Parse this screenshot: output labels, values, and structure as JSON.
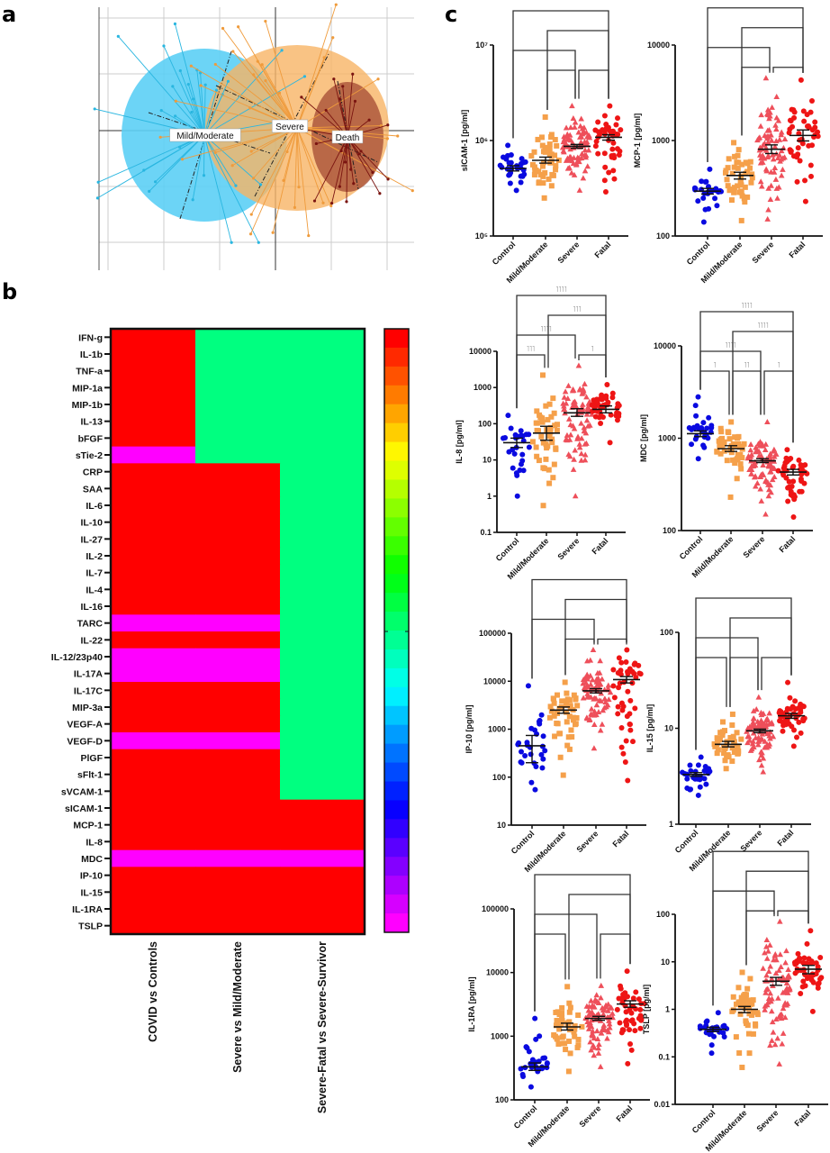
{
  "panel_labels": {
    "a": "a",
    "b": "b",
    "c": "c"
  },
  "chart_data": [
    {
      "panel": "a",
      "type": "scatter",
      "groups": [
        {
          "name": "Mild/Moderate",
          "color": "#29b6e0",
          "fill": "#5ccff5"
        },
        {
          "name": "Severe",
          "color": "#ef9b3c",
          "fill": "#f7b465"
        },
        {
          "name": "Death",
          "color": "#7a1410",
          "fill": "#a34a33"
        }
      ],
      "grid": true
    },
    {
      "panel": "b",
      "type": "heatmap",
      "columns": [
        "COVID vs Controls",
        "Severe vs Mild/Moderate",
        "Severe-Fatal vs Severe-Survivor"
      ],
      "color_key": {
        "1": "#ff0000",
        "0": "#00ff80",
        "-1": "#ff00ff"
      },
      "rows": [
        {
          "name": "IFN-g",
          "values": [
            1,
            0,
            0
          ]
        },
        {
          "name": "IL-1b",
          "values": [
            1,
            0,
            0
          ]
        },
        {
          "name": "TNF-a",
          "values": [
            1,
            0,
            0
          ]
        },
        {
          "name": "MIP-1a",
          "values": [
            1,
            0,
            0
          ]
        },
        {
          "name": "MIP-1b",
          "values": [
            1,
            0,
            0
          ]
        },
        {
          "name": "IL-13",
          "values": [
            1,
            0,
            0
          ]
        },
        {
          "name": "bFGF",
          "values": [
            1,
            0,
            0
          ]
        },
        {
          "name": "sTie-2",
          "values": [
            -1,
            0,
            0
          ]
        },
        {
          "name": "CRP",
          "values": [
            1,
            1,
            0
          ]
        },
        {
          "name": "SAA",
          "values": [
            1,
            1,
            0
          ]
        },
        {
          "name": "IL-6",
          "values": [
            1,
            1,
            0
          ]
        },
        {
          "name": "IL-10",
          "values": [
            1,
            1,
            0
          ]
        },
        {
          "name": "IL-27",
          "values": [
            1,
            1,
            0
          ]
        },
        {
          "name": "IL-2",
          "values": [
            1,
            1,
            0
          ]
        },
        {
          "name": "IL-7",
          "values": [
            1,
            1,
            0
          ]
        },
        {
          "name": "IL-4",
          "values": [
            1,
            1,
            0
          ]
        },
        {
          "name": "IL-16",
          "values": [
            1,
            1,
            0
          ]
        },
        {
          "name": "TARC",
          "values": [
            -1,
            -1,
            0
          ]
        },
        {
          "name": "IL-22",
          "values": [
            1,
            1,
            0
          ]
        },
        {
          "name": "IL-12/23p40",
          "values": [
            -1,
            -1,
            0
          ]
        },
        {
          "name": "IL-17A",
          "values": [
            -1,
            -1,
            0
          ]
        },
        {
          "name": "IL-17C",
          "values": [
            1,
            1,
            0
          ]
        },
        {
          "name": "MIP-3a",
          "values": [
            1,
            1,
            0
          ]
        },
        {
          "name": "VEGF-A",
          "values": [
            1,
            1,
            0
          ]
        },
        {
          "name": "VEGF-D",
          "values": [
            -1,
            -1,
            0
          ]
        },
        {
          "name": "PlGF",
          "values": [
            1,
            1,
            0
          ]
        },
        {
          "name": "sFlt-1",
          "values": [
            1,
            1,
            0
          ]
        },
        {
          "name": "sVCAM-1",
          "values": [
            1,
            1,
            0
          ]
        },
        {
          "name": "sICAM-1",
          "values": [
            1,
            1,
            1
          ]
        },
        {
          "name": "MCP-1",
          "values": [
            1,
            1,
            1
          ]
        },
        {
          "name": "IL-8",
          "values": [
            1,
            1,
            1
          ]
        },
        {
          "name": "MDC",
          "values": [
            -1,
            -1,
            -1
          ]
        },
        {
          "name": "IP-10",
          "values": [
            1,
            1,
            1
          ]
        },
        {
          "name": "IL-15",
          "values": [
            1,
            1,
            1
          ]
        },
        {
          "name": "IL-1RA",
          "values": [
            1,
            1,
            1
          ]
        },
        {
          "name": "TSLP",
          "values": [
            1,
            1,
            1
          ]
        }
      ]
    },
    {
      "panel": "c",
      "type": "scatter",
      "categories": [
        "Control",
        "Mild/Moderate",
        "Severe",
        "Fatal"
      ],
      "group_colors": [
        "#0a0ae0",
        "#f5a04a",
        "#ee4f5a",
        "#ee1515"
      ],
      "group_markers": [
        "circle",
        "square",
        "triangle",
        "circle"
      ],
      "y_scale": "log",
      "plots": [
        {
          "ylabel": "sICAM-1 [pg/ml]",
          "ylim": [
            100000,
            10000000
          ],
          "ticks": [
            "10⁵",
            "10⁶",
            "10⁷"
          ],
          "groups": [
            {
              "mean": 510000,
              "sem": [
                480000,
                545000
              ],
              "min": 300000,
              "max": 890000
            },
            {
              "mean": 620000,
              "sem": [
                580000,
                670000
              ],
              "min": 250000,
              "max": 1760000
            },
            {
              "mean": 870000,
              "sem": [
                830000,
                910000
              ],
              "min": 300000,
              "max": 2300000
            },
            {
              "mean": 1080000,
              "sem": [
                1010000,
                1150000
              ],
              "min": 290000,
              "max": 2300000
            }
          ],
          "brackets": [
            {
              "pair": [
                0,
                3
              ],
              "stars": ""
            },
            {
              "pair": [
                1,
                3
              ],
              "stars": ""
            },
            {
              "pair": [
                0,
                2
              ],
              "stars": ""
            },
            {
              "pair": [
                1,
                2
              ],
              "stars": ""
            },
            {
              "pair": [
                2,
                3
              ],
              "stars": ""
            }
          ]
        },
        {
          "ylabel": "MCP-1 [pg/ml]",
          "ylim": [
            100,
            10000
          ],
          "ticks": [
            "100",
            "1000",
            "10000"
          ],
          "groups": [
            {
              "mean": 295,
              "sem": [
                275,
                315
              ],
              "min": 140,
              "max": 500
            },
            {
              "mean": 430,
              "sem": [
                395,
                465
              ],
              "min": 145,
              "max": 950
            },
            {
              "mean": 810,
              "sem": [
                730,
                900
              ],
              "min": 150,
              "max": 4500
            },
            {
              "mean": 1130,
              "sem": [
                990,
                1290
              ],
              "min": 230,
              "max": 4300
            }
          ],
          "brackets": [
            {
              "pair": [
                0,
                3
              ],
              "stars": ""
            },
            {
              "pair": [
                1,
                3
              ],
              "stars": ""
            },
            {
              "pair": [
                0,
                2
              ],
              "stars": ""
            },
            {
              "pair": [
                1,
                2
              ],
              "stars": ""
            },
            {
              "pair": [
                2,
                3
              ],
              "stars": ""
            }
          ]
        },
        {
          "ylabel": "IL-8 [pg/ml]",
          "ylim": [
            0.1,
            10000
          ],
          "ticks": [
            "0.1",
            "1",
            "10",
            "100",
            "1000",
            "10000"
          ],
          "groups": [
            {
              "mean": 30,
              "sem": [
                22,
                40
              ],
              "min": 1,
              "max": 170
            },
            {
              "mean": 55,
              "sem": [
                35,
                85
              ],
              "min": 0.55,
              "max": 2200
            },
            {
              "mean": 200,
              "sem": [
                160,
                260
              ],
              "min": 1,
              "max": 4000
            },
            {
              "mean": 250,
              "sem": [
                200,
                310
              ],
              "min": 30,
              "max": 1200
            }
          ],
          "brackets": [
            {
              "pair": [
                0,
                3
              ],
              "stars": "˥˥˥˥"
            },
            {
              "pair": [
                1,
                3
              ],
              "stars": "˥˥˥"
            },
            {
              "pair": [
                0,
                2
              ],
              "stars": "˥˥˥˥"
            },
            {
              "pair": [
                0,
                1
              ],
              "stars": "˥˥˥"
            },
            {
              "pair": [
                2,
                3
              ],
              "stars": "˥"
            }
          ]
        },
        {
          "ylabel": "MDC [pg/ml]",
          "ylim": [
            100,
            10000
          ],
          "ticks": [
            "100",
            "1000",
            "10000"
          ],
          "groups": [
            {
              "mean": 1120,
              "sem": [
                1040,
                1200
              ],
              "min": 600,
              "max": 2800
            },
            {
              "mean": 770,
              "sem": [
                720,
                830
              ],
              "min": 230,
              "max": 1500
            },
            {
              "mean": 570,
              "sem": [
                545,
                600
              ],
              "min": 150,
              "max": 1500
            },
            {
              "mean": 430,
              "sem": [
                400,
                460
              ],
              "min": 140,
              "max": 750
            }
          ],
          "brackets": [
            {
              "pair": [
                0,
                3
              ],
              "stars": "˥˥˥˥"
            },
            {
              "pair": [
                1,
                3
              ],
              "stars": "˥˥˥˥"
            },
            {
              "pair": [
                0,
                2
              ],
              "stars": "˥˥˥˥"
            },
            {
              "pair": [
                0,
                1
              ],
              "stars": "˥"
            },
            {
              "pair": [
                1,
                2
              ],
              "stars": "˥˥"
            },
            {
              "pair": [
                2,
                3
              ],
              "stars": "˥"
            }
          ]
        },
        {
          "ylabel": "IP-10 [pg/ml]",
          "ylim": [
            10,
            100000
          ],
          "ticks": [
            "10",
            "100",
            "1000",
            "10000",
            "100000"
          ],
          "groups": [
            {
              "mean": 450,
              "sem": [
                200,
                740
              ],
              "min": 55,
              "max": 8000
            },
            {
              "mean": 2500,
              "sem": [
                2150,
                2900
              ],
              "min": 110,
              "max": 9500
            },
            {
              "mean": 6300,
              "sem": [
                5700,
                7000
              ],
              "min": 400,
              "max": 45000
            },
            {
              "mean": 10800,
              "sem": [
                9200,
                12500
              ],
              "min": 85,
              "max": 45000
            }
          ],
          "brackets": [
            {
              "pair": [
                0,
                3
              ],
              "stars": ""
            },
            {
              "pair": [
                1,
                3
              ],
              "stars": ""
            },
            {
              "pair": [
                0,
                2
              ],
              "stars": ""
            },
            {
              "pair": [
                1,
                2
              ],
              "stars": ""
            },
            {
              "pair": [
                2,
                3
              ],
              "stars": ""
            }
          ]
        },
        {
          "ylabel": "IL-15 [pg/ml]",
          "ylim": [
            1,
            100
          ],
          "ticks": [
            "1",
            "10",
            "100"
          ],
          "groups": [
            {
              "mean": 3.3,
              "sem": [
                3.15,
                3.45
              ],
              "min": 2,
              "max": 5
            },
            {
              "mean": 6.8,
              "sem": [
                6.4,
                7.3
              ],
              "min": 3.8,
              "max": 14
            },
            {
              "mean": 9.4,
              "sem": [
                9.0,
                9.8
              ],
              "min": 3.5,
              "max": 21
            },
            {
              "mean": 13.5,
              "sem": [
                12.7,
                14.3
              ],
              "min": 6.5,
              "max": 30
            }
          ],
          "brackets": [
            {
              "pair": [
                0,
                3
              ],
              "stars": ""
            },
            {
              "pair": [
                1,
                3
              ],
              "stars": ""
            },
            {
              "pair": [
                0,
                2
              ],
              "stars": ""
            },
            {
              "pair": [
                0,
                1
              ],
              "stars": ""
            },
            {
              "pair": [
                1,
                2
              ],
              "stars": ""
            },
            {
              "pair": [
                2,
                3
              ],
              "stars": ""
            }
          ]
        },
        {
          "ylabel": "IL-1RA [pg/ml]",
          "ylim": [
            100,
            100000
          ],
          "ticks": [
            "100",
            "1000",
            "10000",
            "100000"
          ],
          "groups": [
            {
              "mean": 330,
              "sem": [
                290,
                380
              ],
              "min": 160,
              "max": 1900
            },
            {
              "mean": 1400,
              "sem": [
                1250,
                1600
              ],
              "min": 280,
              "max": 6000
            },
            {
              "mean": 1900,
              "sem": [
                1780,
                2050
              ],
              "min": 330,
              "max": 6200
            },
            {
              "mean": 3200,
              "sem": [
                2850,
                3600
              ],
              "min": 370,
              "max": 10500
            }
          ],
          "brackets": [
            {
              "pair": [
                0,
                3
              ],
              "stars": ""
            },
            {
              "pair": [
                1,
                3
              ],
              "stars": ""
            },
            {
              "pair": [
                0,
                2
              ],
              "stars": ""
            },
            {
              "pair": [
                0,
                1
              ],
              "stars": ""
            },
            {
              "pair": [
                2,
                3
              ],
              "stars": ""
            }
          ]
        },
        {
          "ylabel": "TSLP [pg/ml]",
          "ylim": [
            0.01,
            100
          ],
          "ticks": [
            "0.01",
            "0.1",
            "1",
            "10",
            "100"
          ],
          "groups": [
            {
              "mean": 0.38,
              "sem": [
                0.34,
                0.42
              ],
              "min": 0.12,
              "max": 0.85
            },
            {
              "mean": 1.0,
              "sem": [
                0.85,
                1.15
              ],
              "min": 0.06,
              "max": 6
            },
            {
              "mean": 3.9,
              "sem": [
                3.2,
                4.7
              ],
              "min": 0.07,
              "max": 70
            },
            {
              "mean": 7.0,
              "sem": [
                5.6,
                8.4
              ],
              "min": 0.9,
              "max": 45
            }
          ],
          "brackets": [
            {
              "pair": [
                0,
                3
              ],
              "stars": ""
            },
            {
              "pair": [
                1,
                3
              ],
              "stars": ""
            },
            {
              "pair": [
                0,
                2
              ],
              "stars": ""
            },
            {
              "pair": [
                1,
                2
              ],
              "stars": ""
            },
            {
              "pair": [
                2,
                3
              ],
              "stars": ""
            }
          ]
        }
      ]
    }
  ]
}
